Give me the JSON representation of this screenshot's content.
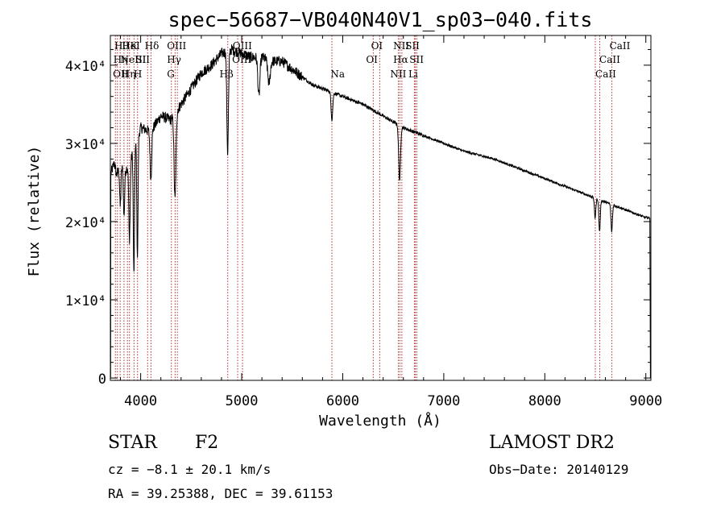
{
  "chart_data": {
    "type": "line",
    "title": "spec−56687−VB040N40V1_sp03−040.fits",
    "xlabel": "Wavelength (Å)",
    "ylabel": "Flux (relative)",
    "xlim": [
      3700,
      9050
    ],
    "ylim": [
      -300,
      43800
    ],
    "x_ticks": [
      4000,
      5000,
      6000,
      7000,
      8000,
      9000
    ],
    "x_tick_labels": [
      "4000",
      "5000",
      "6000",
      "7000",
      "8000",
      "9000"
    ],
    "y_ticks": [
      0,
      10000,
      20000,
      30000,
      40000
    ],
    "y_tick_labels": [
      "0",
      "1×10⁴",
      "2×10⁴",
      "3×10⁴",
      "4×10⁴"
    ],
    "series": [
      {
        "name": "flux",
        "continuum_x": [
          3700,
          3740,
          3760,
          3800,
          3850,
          3900,
          3950,
          4000,
          4100,
          4200,
          4300,
          4400,
          4500,
          4600,
          4700,
          4800,
          4900,
          5000,
          5100,
          5200,
          5300,
          5400,
          5500,
          5600,
          5700,
          5800,
          5900,
          6000,
          6200,
          6400,
          6600,
          6800,
          7000,
          7200,
          7500,
          7800,
          8000,
          8200,
          8400,
          8600,
          8800,
          9000
        ],
        "continuum_y": [
          26000,
          27500,
          26000,
          27000,
          26500,
          28000,
          30000,
          32000,
          31500,
          33500,
          33000,
          35000,
          37000,
          39000,
          40000,
          41500,
          42000,
          41500,
          41000,
          41000,
          40500,
          40500,
          39500,
          38500,
          37500,
          37000,
          36500,
          36000,
          35000,
          33500,
          32000,
          31000,
          30000,
          29000,
          28000,
          26500,
          25500,
          24500,
          23500,
          22500,
          21500,
          20500
        ],
        "absorption_lines": [
          {
            "x": 3798,
            "depth": 5000,
            "width": 6
          },
          {
            "x": 3835,
            "depth": 6000,
            "width": 6
          },
          {
            "x": 3889,
            "depth": 10000,
            "width": 7
          },
          {
            "x": 3933,
            "depth": 16000,
            "width": 6
          },
          {
            "x": 3968,
            "depth": 15000,
            "width": 6
          },
          {
            "x": 4101,
            "depth": 6000,
            "width": 8
          },
          {
            "x": 4340,
            "depth": 11000,
            "width": 9
          },
          {
            "x": 4861,
            "depth": 13000,
            "width": 8
          },
          {
            "x": 5170,
            "depth": 5000,
            "width": 10
          },
          {
            "x": 5270,
            "depth": 3000,
            "width": 12
          },
          {
            "x": 5893,
            "depth": 3500,
            "width": 8
          },
          {
            "x": 6563,
            "depth": 7000,
            "width": 9
          },
          {
            "x": 8498,
            "depth": 2500,
            "width": 7
          },
          {
            "x": 8542,
            "depth": 4000,
            "width": 7
          },
          {
            "x": 8662,
            "depth": 3500,
            "width": 7
          }
        ],
        "end_points": [
          {
            "x": 3702,
            "y": 0
          },
          {
            "x": 9045,
            "y": 0
          }
        ]
      }
    ],
    "line_markers": [
      {
        "x": 3750,
        "labels": [
          "Hθ"
        ]
      },
      {
        "x": 3770,
        "labels": [
          "Hη"
        ]
      },
      {
        "x": 3797,
        "labels": [
          "OII"
        ]
      },
      {
        "x": 3835,
        "labels": [
          "Hη"
        ]
      },
      {
        "x": 3869,
        "labels": [
          "NeIII"
        ]
      },
      {
        "x": 3889,
        "labels": [
          "HeI"
        ]
      },
      {
        "x": 3934,
        "labels": [
          "K"
        ]
      },
      {
        "x": 3969,
        "labels": [
          "H"
        ]
      },
      {
        "x": 4069,
        "labels": [
          "SII"
        ]
      },
      {
        "x": 4102,
        "labels": [
          "Hδ"
        ]
      },
      {
        "x": 4304,
        "labels": [
          "G"
        ]
      },
      {
        "x": 4341,
        "labels": [
          "Hγ"
        ]
      },
      {
        "x": 4363,
        "labels": [
          "OIII"
        ]
      },
      {
        "x": 4862,
        "labels": [
          "Hβ"
        ]
      },
      {
        "x": 4960,
        "labels": [
          "OIII"
        ]
      },
      {
        "x": 5008,
        "labels": [
          "OIII"
        ]
      },
      {
        "x": 5893,
        "labels": [
          "Na"
        ]
      },
      {
        "x": 6302,
        "labels": [
          "OI"
        ]
      },
      {
        "x": 6366,
        "labels": [
          "OI"
        ]
      },
      {
        "x": 6550,
        "labels": [
          "NII"
        ]
      },
      {
        "x": 6565,
        "labels": [
          "Hα"
        ]
      },
      {
        "x": 6585,
        "labels": [
          "NII"
        ]
      },
      {
        "x": 6709,
        "labels": [
          "Li"
        ]
      },
      {
        "x": 6718,
        "labels": [
          "SII"
        ]
      },
      {
        "x": 6733,
        "labels": [
          "SII"
        ]
      },
      {
        "x": 8500,
        "labels": [
          "CaII"
        ]
      },
      {
        "x": 8544,
        "labels": [
          "CaII"
        ]
      },
      {
        "x": 8664,
        "labels": [
          "CaII"
        ]
      }
    ],
    "marker_label_positions": [
      {
        "text": "Hθ",
        "x": 3740,
        "row": 1
      },
      {
        "text": "Hη",
        "x": 3730,
        "row": 2
      },
      {
        "text": "OII",
        "x": 3725,
        "row": 3
      },
      {
        "text": "HeI",
        "x": 3815,
        "row": 1
      },
      {
        "text": "K",
        "x": 3895,
        "row": 1
      },
      {
        "text": "Hδ",
        "x": 4040,
        "row": 1
      },
      {
        "text": "NeIII",
        "x": 3800,
        "row": 2
      },
      {
        "text": "SII",
        "x": 3950,
        "row": 2
      },
      {
        "text": "Hη",
        "x": 3810,
        "row": 3
      },
      {
        "text": "H",
        "x": 3930,
        "row": 3
      },
      {
        "text": "OIII",
        "x": 4260,
        "row": 1
      },
      {
        "text": "Hγ",
        "x": 4260,
        "row": 2
      },
      {
        "text": "G",
        "x": 4260,
        "row": 3
      },
      {
        "text": "OIII",
        "x": 4910,
        "row": 1
      },
      {
        "text": "OIII",
        "x": 4905,
        "row": 2
      },
      {
        "text": "Hβ",
        "x": 4780,
        "row": 3
      },
      {
        "text": "Na",
        "x": 5880,
        "row": 3
      },
      {
        "text": "OI",
        "x": 6280,
        "row": 1
      },
      {
        "text": "OI",
        "x": 6230,
        "row": 2
      },
      {
        "text": "NII",
        "x": 6500,
        "row": 1
      },
      {
        "text": "Hα",
        "x": 6500,
        "row": 2
      },
      {
        "text": "NII",
        "x": 6470,
        "row": 3
      },
      {
        "text": "SII",
        "x": 6620,
        "row": 1
      },
      {
        "text": "SII",
        "x": 6660,
        "row": 2
      },
      {
        "text": "Li",
        "x": 6650,
        "row": 3
      },
      {
        "text": "CaII",
        "x": 8640,
        "row": 1
      },
      {
        "text": "CaII",
        "x": 8540,
        "row": 2
      },
      {
        "text": "CaII",
        "x": 8500,
        "row": 3
      }
    ],
    "marker_label_offsets": {
      "row1": "4×10⁴ overlap"
    }
  },
  "info": {
    "object_class": "STAR",
    "subclass": "F2",
    "survey": "LAMOST DR2",
    "redshift": "cz = −8.1 ± 20.1 km/s",
    "obs_date": "Obs−Date: 20140129",
    "coords": "RA =  39.25388, DEC =  39.61153"
  },
  "colors": {
    "background": "#ffffff",
    "axis": "#000000",
    "spectrum": "#000000",
    "line_marker": "#b03030"
  }
}
